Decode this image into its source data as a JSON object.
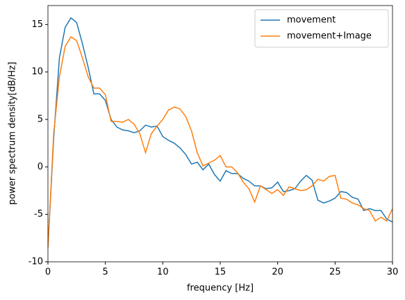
{
  "chart_data": {
    "type": "line",
    "xlabel": "frequency [Hz]",
    "ylabel": "power spectrum density[dB/Hz]",
    "x": [
      0,
      0.5,
      1,
      1.5,
      2,
      2.5,
      3,
      3.5,
      4,
      4.5,
      5,
      5.5,
      6,
      6.5,
      7,
      7.5,
      8,
      8.5,
      9,
      9.5,
      10,
      10.5,
      11,
      11.5,
      12,
      12.5,
      13,
      13.5,
      14,
      14.5,
      15,
      15.5,
      16,
      16.5,
      17,
      17.5,
      18,
      18.5,
      19,
      19.5,
      20,
      20.5,
      21,
      21.5,
      22,
      22.5,
      23,
      23.5,
      24,
      24.5,
      25,
      25.5,
      26,
      26.5,
      27,
      27.5,
      28,
      28.5,
      29,
      29.5,
      30
    ],
    "series": [
      {
        "name": "movement",
        "color": "#1f77b4",
        "values": [
          -8.5,
          3,
          11.5,
          14.7,
          15.7,
          15.2,
          13,
          10.5,
          7.7,
          7.7,
          7,
          5,
          4.2,
          3.9,
          3.8,
          3.6,
          3.8,
          4.4,
          4.2,
          4.3,
          3.2,
          2.8,
          2.5,
          2,
          1.3,
          0.3,
          0.5,
          -0.3,
          0.3,
          -0.8,
          -1.5,
          -0.4,
          -0.7,
          -0.7,
          -1.2,
          -1.5,
          -2,
          -2,
          -2.3,
          -2.2,
          -1.6,
          -2.6,
          -2.5,
          -2.3,
          -1.5,
          -0.9,
          -1.4,
          -3.5,
          -3.8,
          -3.6,
          -3.3,
          -2.6,
          -2.7,
          -3.2,
          -3.4,
          -4.6,
          -4.4,
          -4.6,
          -4.6,
          -5.5,
          -5.8
        ]
      },
      {
        "name": "movement+Image",
        "color": "#ff7f0e",
        "values": [
          -8.5,
          3.5,
          9.5,
          12.7,
          13.7,
          13.3,
          11.5,
          9.5,
          8.3,
          8.3,
          7.6,
          4.8,
          4.8,
          4.7,
          5,
          4.5,
          3.5,
          1.5,
          3.5,
          4.3,
          5,
          6,
          6.3,
          6.1,
          5.3,
          3.8,
          1.5,
          0.1,
          0.4,
          0.7,
          1.2,
          0,
          0,
          -0.6,
          -1.6,
          -2.3,
          -3.7,
          -2,
          -2.4,
          -2.8,
          -2.4,
          -3,
          -2.1,
          -2.3,
          -2.5,
          -2.4,
          -2,
          -1.3,
          -1.5,
          -1,
          -0.9,
          -3.3,
          -3.4,
          -3.8,
          -4,
          -4.4,
          -4.6,
          -5.7,
          -5.3,
          -5.7,
          -4.4
        ]
      }
    ],
    "xlim": [
      0,
      30
    ],
    "xticks": [
      0,
      5,
      10,
      15,
      20,
      25,
      30
    ],
    "ylim": [
      -10,
      17
    ],
    "yticks": [
      -10,
      -5,
      0,
      5,
      10,
      15
    ],
    "legend": "upper right"
  }
}
